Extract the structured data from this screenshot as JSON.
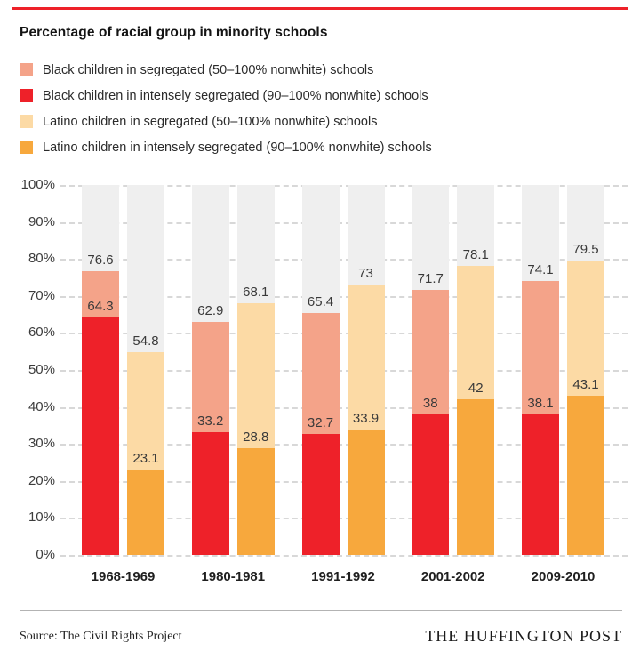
{
  "page": {
    "title": "Percentage of racial group in minority schools",
    "source": "Source: The Civil Rights Project",
    "brand": "THE HUFFINGTON POST"
  },
  "colors": {
    "black_segregated": "#f4a389",
    "black_intense": "#ee2129",
    "latino_segregated": "#fcdaa5",
    "latino_intense": "#f7a83d",
    "bar_background": "#efefef",
    "gridline": "#d8d8d8",
    "top_rule": "#ee2129",
    "value_text": "#3a3a3a"
  },
  "legend": [
    {
      "label": "Black children in segregated (50–100% nonwhite) schools",
      "color_key": "black_segregated"
    },
    {
      "label": "Black children in intensely segregated (90–100% nonwhite) schools",
      "color_key": "black_intense"
    },
    {
      "label": "Latino children in segregated (50–100% nonwhite) schools",
      "color_key": "latino_segregated"
    },
    {
      "label": "Latino children in intensely segregated (90–100% nonwhite) schools",
      "color_key": "latino_intense"
    }
  ],
  "chart_data": {
    "type": "bar",
    "title": "Percentage of racial group in minority schools",
    "categories": [
      "1968-1969",
      "1980-1981",
      "1991-1992",
      "2001-2002",
      "2009-2010"
    ],
    "series": [
      {
        "name": "Black children in segregated (50–100% nonwhite) schools",
        "values": [
          76.6,
          62.9,
          65.4,
          71.7,
          74.1
        ],
        "labels": [
          "76.6",
          "62.9",
          "65.4",
          "71.7",
          "74.1"
        ],
        "color_key": "black_segregated"
      },
      {
        "name": "Black children in intensely segregated (90–100% nonwhite) schools",
        "values": [
          64.3,
          33.2,
          32.7,
          38,
          38.1
        ],
        "labels": [
          "64.3",
          "33.2",
          "32.7",
          "38",
          "38.1"
        ],
        "color_key": "black_intense"
      },
      {
        "name": "Latino children in segregated (50–100% nonwhite) schools",
        "values": [
          54.8,
          68.1,
          73,
          78.1,
          79.5
        ],
        "labels": [
          "54.8",
          "68.1",
          "73",
          "78.1",
          "79.5"
        ],
        "color_key": "latino_segregated"
      },
      {
        "name": "Latino children in intensely segregated (90–100% nonwhite) schools",
        "values": [
          23.1,
          28.8,
          33.9,
          42,
          43.1
        ],
        "labels": [
          "23.1",
          "28.8",
          "33.9",
          "42",
          "43.1"
        ],
        "color_key": "latino_intense"
      }
    ],
    "y_ticks": [
      "100%",
      "90%",
      "80%",
      "70%",
      "60%",
      "50%",
      "40%",
      "30%",
      "20%",
      "10%",
      "0%"
    ],
    "ylim": [
      0,
      100
    ],
    "grid": "dashed-horizontal",
    "legend_position": "top",
    "bar_style": "intense series overlaid on segregated series, drawn on full-height gray background columns",
    "xlabel": "",
    "ylabel": ""
  }
}
